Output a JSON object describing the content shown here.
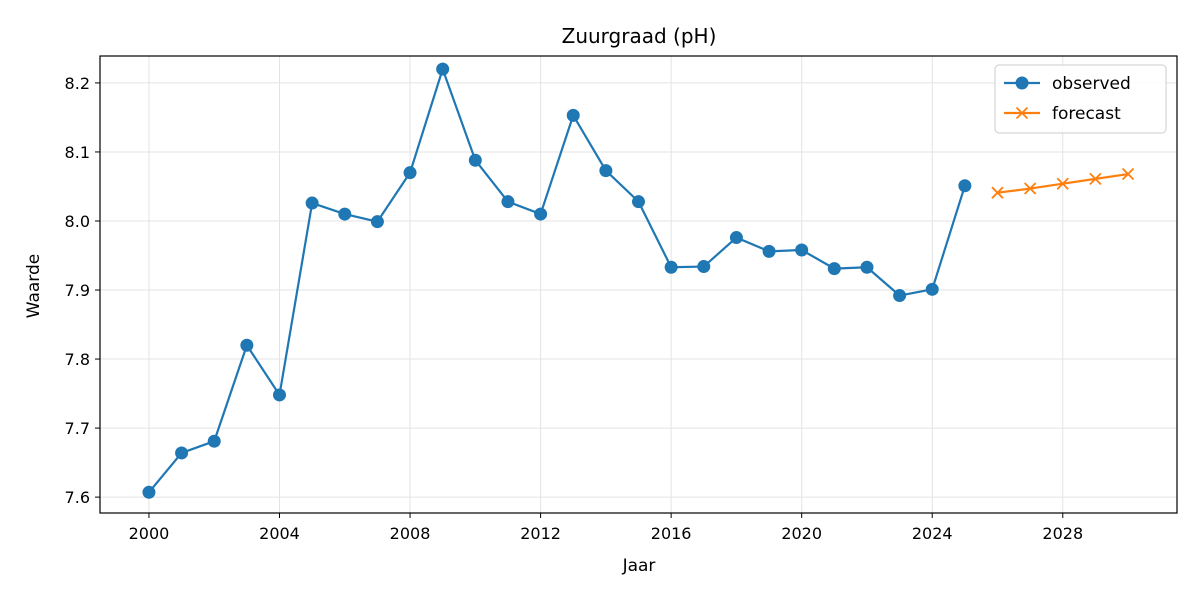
{
  "chart_data": {
    "type": "line",
    "title": "Zuurgraad (pH)",
    "xlabel": "Jaar",
    "ylabel": "Waarde",
    "xlim": [
      1998.5,
      2031.5
    ],
    "ylim": [
      7.577,
      8.239
    ],
    "xticks": [
      2000,
      2004,
      2008,
      2012,
      2016,
      2020,
      2024,
      2028
    ],
    "yticks": [
      7.6,
      7.7,
      7.8,
      7.9,
      8.0,
      8.1,
      8.2
    ],
    "ytick_labels": [
      "7.6",
      "7.7",
      "7.8",
      "7.9",
      "8.0",
      "8.1",
      "8.2"
    ],
    "grid": true,
    "legend_position": "top-right",
    "series": [
      {
        "name": "observed",
        "color": "#1f77b4",
        "marker": "circle",
        "x": [
          2000,
          2001,
          2002,
          2003,
          2004,
          2005,
          2006,
          2007,
          2008,
          2009,
          2010,
          2011,
          2012,
          2013,
          2014,
          2015,
          2016,
          2017,
          2018,
          2019,
          2020,
          2021,
          2022,
          2023,
          2024,
          2025
        ],
        "y": [
          7.607,
          7.664,
          7.681,
          7.82,
          7.748,
          8.026,
          8.01,
          7.999,
          8.07,
          8.22,
          8.088,
          8.028,
          8.01,
          8.153,
          8.073,
          8.028,
          7.933,
          7.934,
          7.976,
          7.956,
          7.958,
          7.931,
          7.933,
          7.892,
          7.901,
          8.051
        ]
      },
      {
        "name": "forecast",
        "color": "#ff7f0e",
        "marker": "x",
        "x": [
          2026,
          2027,
          2028,
          2029,
          2030
        ],
        "y": [
          8.041,
          8.047,
          8.054,
          8.061,
          8.068
        ]
      }
    ]
  }
}
